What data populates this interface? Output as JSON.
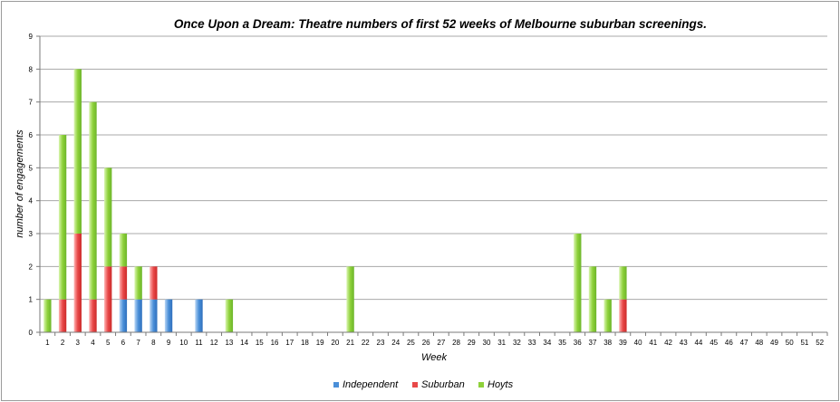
{
  "chart_data": {
    "type": "bar",
    "stacked": true,
    "title": "Once Upon a Dream: Theatre numbers of first 52 weeks of Melbourne suburban screenings.",
    "xlabel": "Week",
    "ylabel": "number of engagements",
    "ylim": [
      0,
      9
    ],
    "yticks": [
      "0",
      "1",
      "2",
      "3",
      "4",
      "5",
      "6",
      "7",
      "8",
      "9"
    ],
    "grid": true,
    "legend_position": "bottom",
    "categories": [
      "1",
      "2",
      "3",
      "4",
      "5",
      "6",
      "7",
      "8",
      "9",
      "10",
      "11",
      "12",
      "13",
      "14",
      "15",
      "16",
      "17",
      "18",
      "19",
      "20",
      "21",
      "22",
      "23",
      "24",
      "25",
      "26",
      "27",
      "28",
      "29",
      "30",
      "31",
      "32",
      "33",
      "34",
      "35",
      "36",
      "37",
      "38",
      "39",
      "40",
      "41",
      "42",
      "43",
      "44",
      "45",
      "46",
      "47",
      "48",
      "49",
      "50",
      "51",
      "52"
    ],
    "series": [
      {
        "name": "Independent",
        "color": "#4a8fd8",
        "values": [
          0,
          0,
          0,
          0,
          0,
          1,
          1,
          1,
          1,
          0,
          1,
          0,
          0,
          0,
          0,
          0,
          0,
          0,
          0,
          0,
          0,
          0,
          0,
          0,
          0,
          0,
          0,
          0,
          0,
          0,
          0,
          0,
          0,
          0,
          0,
          0,
          0,
          0,
          0,
          0,
          0,
          0,
          0,
          0,
          0,
          0,
          0,
          0,
          0,
          0,
          0,
          0
        ]
      },
      {
        "name": "Suburban",
        "color": "#e84848",
        "values": [
          0,
          1,
          3,
          1,
          2,
          1,
          0,
          1,
          0,
          0,
          0,
          0,
          0,
          0,
          0,
          0,
          0,
          0,
          0,
          0,
          0,
          0,
          0,
          0,
          0,
          0,
          0,
          0,
          0,
          0,
          0,
          0,
          0,
          0,
          0,
          0,
          0,
          0,
          1,
          0,
          0,
          0,
          0,
          0,
          0,
          0,
          0,
          0,
          0,
          0,
          0,
          0
        ]
      },
      {
        "name": "Hoyts",
        "color": "#8ed13a",
        "values": [
          1,
          5,
          5,
          6,
          3,
          1,
          1,
          0,
          0,
          0,
          0,
          0,
          1,
          0,
          0,
          0,
          0,
          0,
          0,
          0,
          2,
          0,
          0,
          0,
          0,
          0,
          0,
          0,
          0,
          0,
          0,
          0,
          0,
          0,
          0,
          3,
          2,
          1,
          1,
          0,
          0,
          0,
          0,
          0,
          0,
          0,
          0,
          0,
          0,
          0,
          0,
          0
        ]
      }
    ]
  }
}
